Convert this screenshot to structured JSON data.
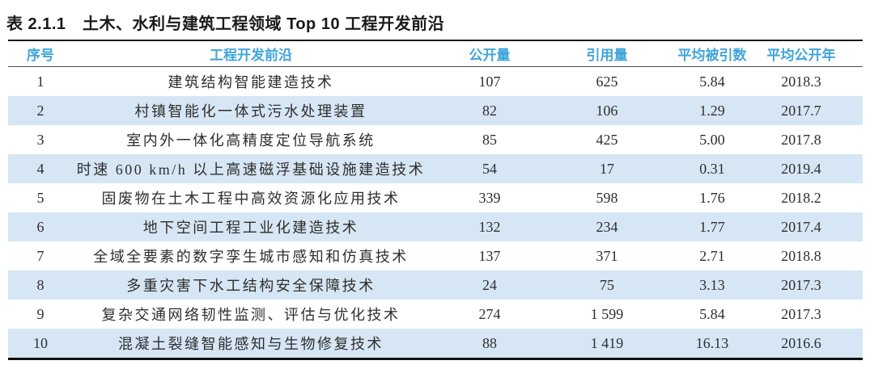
{
  "table": {
    "caption": "表 2.1.1　土木、水利与建筑工程领域 Top 10 工程开发前沿",
    "columns": [
      "序号",
      "工程开发前沿",
      "公开量",
      "引用量",
      "平均被引数",
      "平均公开年"
    ],
    "rows": [
      [
        "1",
        "建筑结构智能建造技术",
        "107",
        "625",
        "5.84",
        "2018.3"
      ],
      [
        "2",
        "村镇智能化一体式污水处理装置",
        "82",
        "106",
        "1.29",
        "2017.7"
      ],
      [
        "3",
        "室内外一体化高精度定位导航系统",
        "85",
        "425",
        "5.00",
        "2017.8"
      ],
      [
        "4",
        "时速 600 km/h 以上高速磁浮基础设施建造技术",
        "54",
        "17",
        "0.31",
        "2019.4"
      ],
      [
        "5",
        "固废物在土木工程中高效资源化应用技术",
        "339",
        "598",
        "1.76",
        "2018.2"
      ],
      [
        "6",
        "地下空间工程工业化建造技术",
        "132",
        "234",
        "1.77",
        "2017.4"
      ],
      [
        "7",
        "全域全要素的数字孪生城市感知和仿真技术",
        "137",
        "371",
        "2.71",
        "2018.8"
      ],
      [
        "8",
        "多重灾害下水工结构安全保障技术",
        "24",
        "75",
        "3.13",
        "2017.3"
      ],
      [
        "9",
        "复杂交通网络韧性监测、评估与优化技术",
        "274",
        "1 599",
        "5.84",
        "2017.3"
      ],
      [
        "10",
        "混凝土裂缝智能感知与生物修复技术",
        "88",
        "1 419",
        "16.13",
        "2016.6"
      ]
    ],
    "colors": {
      "header_text": "#40a5da",
      "stripe_row_bg": "#d6e6f4",
      "body_text": "#2e2e2e",
      "rule": "#1a1a1a"
    }
  }
}
